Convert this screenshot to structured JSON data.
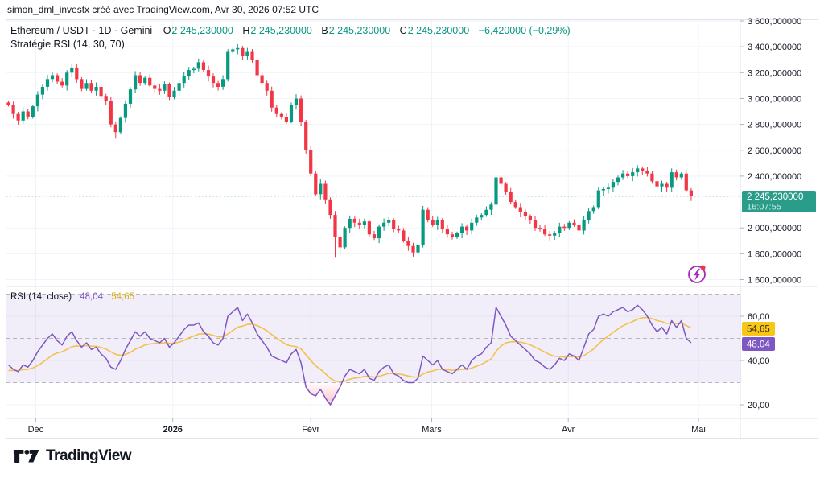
{
  "header": {
    "title": "simon_dml_investx créé avec TradingView.com, Avr 30, 2026 07:52 UTC"
  },
  "legend": {
    "symbol": "Ethereum / USDT · 1D · Gemini",
    "ohlc": [
      {
        "label": "O",
        "value": "2 245,230000"
      },
      {
        "label": "H",
        "value": "2 245,230000"
      },
      {
        "label": "B",
        "value": "2 245,230000"
      },
      {
        "label": "C",
        "value": "2 245,230000"
      }
    ],
    "change": "−6,420000 (−0,29%)",
    "strategy": "Stratégie RSI (14, 30, 70)"
  },
  "rsi_legend": {
    "title": "RSI (14, close)",
    "rsi_value": "48,04",
    "ma_value": "54,65"
  },
  "price_axis": {
    "ticks": [
      {
        "value": 3600,
        "label": "3 600,000000"
      },
      {
        "value": 3400,
        "label": "3 400,000000"
      },
      {
        "value": 3200,
        "label": "3 200,000000"
      },
      {
        "value": 3000,
        "label": "3 000,000000"
      },
      {
        "value": 2800,
        "label": "2 800,000000"
      },
      {
        "value": 2600,
        "label": "2 600,000000"
      },
      {
        "value": 2400,
        "label": "2 400,000000"
      },
      {
        "value": 2000,
        "label": "2 000,000000"
      },
      {
        "value": 1800,
        "label": "1 800,000000"
      },
      {
        "value": 1600,
        "label": "1 600,000000"
      }
    ],
    "badge": {
      "price": "2 245,230000",
      "time": "16:07:55"
    }
  },
  "rsi_axis": {
    "ticks": [
      {
        "value": 60,
        "label": "60,00"
      },
      {
        "value": 40,
        "label": "40,00"
      },
      {
        "value": 20,
        "label": "20,00"
      }
    ],
    "ma_badge": "54,65",
    "rsi_badge": "48,04"
  },
  "time_axis": {
    "labels": [
      {
        "label": "Déc",
        "i": 5.6,
        "bold": false
      },
      {
        "label": "2026",
        "i": 33.7,
        "bold": true
      },
      {
        "label": "Févr",
        "i": 62,
        "bold": false
      },
      {
        "label": "Mars",
        "i": 86.8,
        "bold": false
      },
      {
        "label": "Avr",
        "i": 114.8,
        "bold": false
      },
      {
        "label": "Mai",
        "i": 141.5,
        "bold": false
      }
    ]
  },
  "footer": {
    "brand": "TradingView"
  },
  "colors": {
    "up": "#089981",
    "down": "#f23645",
    "teal_text": "#089981",
    "badge_teal": "#2a9d8a",
    "rsi_line": "#7e57c2",
    "ma_line": "#f2c14e",
    "badge_yellow": "#f8c617",
    "badge_purple": "#7e57c2",
    "band": "rgba(126,87,194,0.10)",
    "grid": "#f0f3fa",
    "frame": "#e0e3eb",
    "text": "#131722",
    "tick": "#b2b5be",
    "level_dash": "#9598a1",
    "flash_ring": "#a32eba",
    "flash_dot": "#f23645"
  },
  "chart_data": {
    "type": "candlestick+line",
    "symbol": "Ethereum / USDT",
    "interval": "1D",
    "exchange": "Gemini",
    "last_price": 2245.23,
    "change": -6.42,
    "change_pct": -0.29,
    "price_ylim": [
      1600,
      3600
    ],
    "open_first": 2970,
    "closes": [
      2950,
      2880,
      2830,
      2900,
      2860,
      2940,
      3030,
      3090,
      3150,
      3180,
      3130,
      3100,
      3200,
      3240,
      3150,
      3080,
      3120,
      3060,
      3090,
      3020,
      2980,
      2800,
      2740,
      2850,
      2960,
      3070,
      3180,
      3120,
      3160,
      3100,
      3080,
      3060,
      3110,
      3010,
      3060,
      3120,
      3170,
      3220,
      3230,
      3280,
      3220,
      3170,
      3120,
      3090,
      3150,
      3360,
      3380,
      3390,
      3330,
      3360,
      3300,
      3180,
      3120,
      3060,
      2930,
      2880,
      2860,
      2820,
      2950,
      3000,
      2820,
      2600,
      2420,
      2260,
      2340,
      2220,
      2100,
      1930,
      1850,
      2000,
      2070,
      2040,
      2020,
      2050,
      1950,
      1920,
      2010,
      2040,
      2060,
      1990,
      1980,
      1900,
      1860,
      1810,
      1870,
      2140,
      2060,
      2020,
      2060,
      1990,
      1950,
      1930,
      1960,
      2010,
      1980,
      2040,
      2080,
      2100,
      2140,
      2180,
      2390,
      2340,
      2280,
      2200,
      2160,
      2120,
      2090,
      2060,
      2000,
      1990,
      1950,
      1940,
      1960,
      2010,
      2000,
      2040,
      2020,
      1980,
      2060,
      2130,
      2160,
      2290,
      2300,
      2310,
      2355,
      2390,
      2420,
      2400,
      2430,
      2460,
      2440,
      2420,
      2360,
      2320,
      2340,
      2310,
      2430,
      2390,
      2420,
      2290,
      2245
    ],
    "wick_overrides": {
      "22": {
        "low": 2690
      },
      "47": {
        "high": 3420
      },
      "67": {
        "low": 1770
      },
      "68": {
        "low": 1790
      },
      "100": {
        "high": 2410
      },
      "129": {
        "high": 2485
      }
    },
    "rsi": {
      "length": 14,
      "levels": [
        70,
        50,
        30
      ],
      "oversold_fill_below": 30,
      "last": 48.04,
      "ma_last": 54.65,
      "values": [
        38,
        36,
        35,
        38,
        37,
        40,
        44,
        47,
        50,
        52,
        49,
        47,
        51,
        53,
        49,
        46,
        48,
        45,
        46,
        43,
        41,
        37,
        36,
        40,
        45,
        49,
        53,
        51,
        53,
        50,
        49,
        48,
        50,
        46,
        48,
        51,
        54,
        56,
        56,
        57,
        53,
        51,
        48,
        47,
        50,
        60,
        62,
        64,
        58,
        61,
        57,
        52,
        49,
        46,
        42,
        41,
        40,
        39,
        43,
        45,
        39,
        28,
        25,
        24,
        27,
        23,
        20,
        24,
        28,
        33,
        36,
        35,
        34,
        36,
        32,
        31,
        35,
        37,
        38,
        34,
        33,
        31,
        30,
        30,
        32,
        42,
        40,
        38,
        40,
        36,
        35,
        34,
        36,
        38,
        36,
        40,
        42,
        43,
        46,
        48,
        64,
        60,
        56,
        51,
        49,
        47,
        45,
        43,
        40,
        39,
        37,
        36,
        38,
        41,
        40,
        43,
        42,
        40,
        46,
        52,
        54,
        60,
        61,
        60,
        62,
        63,
        64,
        62,
        63,
        65,
        63,
        60,
        56,
        53,
        55,
        52,
        58,
        55,
        58,
        50,
        48
      ]
    }
  }
}
